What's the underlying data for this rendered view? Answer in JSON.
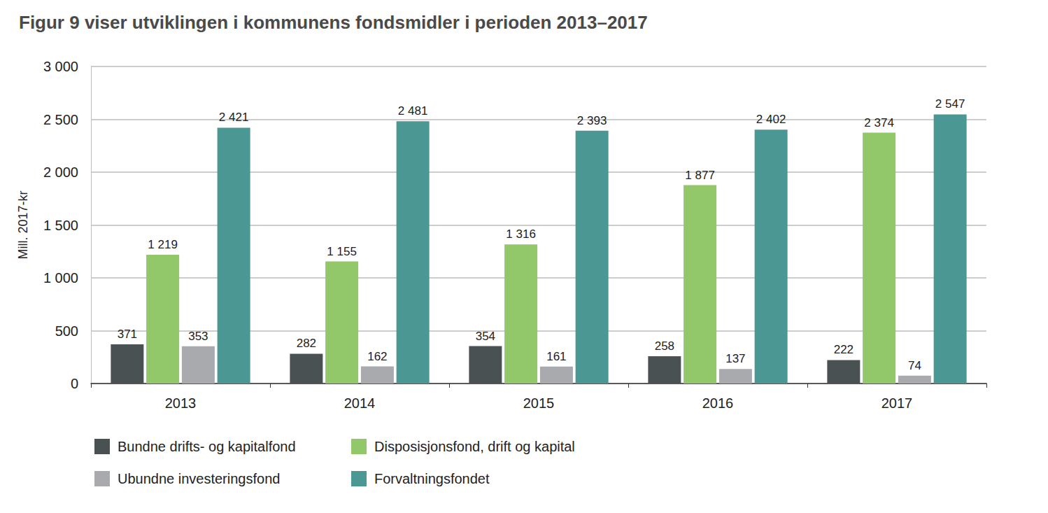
{
  "chart_data": {
    "type": "bar",
    "title": "Figur 9 viser utviklingen i kommunens fondsmidler i perioden 2013–2017",
    "y_label": "Mill. 2017-kr",
    "categories": [
      "2013",
      "2014",
      "2015",
      "2016",
      "2017"
    ],
    "series": [
      {
        "name": "Bundne drifts- og kapitalfond",
        "color": "#4a5153",
        "values": [
          371,
          282,
          354,
          258,
          222
        ],
        "value_labels": [
          "371",
          "282",
          "354",
          "258",
          "222"
        ]
      },
      {
        "name": "Disposisjonsfond, drift og kapital",
        "color": "#93c86a",
        "values": [
          1219,
          1155,
          1316,
          1877,
          2374
        ],
        "value_labels": [
          "1 219",
          "1 155",
          "1 316",
          "1 877",
          "2 374"
        ]
      },
      {
        "name": "Ubundne investeringsfond",
        "color": "#a9aaad",
        "values": [
          353,
          162,
          161,
          137,
          74
        ],
        "value_labels": [
          "353",
          "162",
          "161",
          "137",
          "74"
        ]
      },
      {
        "name": "Forvaltningsfondet",
        "color": "#4b9793",
        "values": [
          2421,
          2481,
          2393,
          2402,
          2547
        ],
        "value_labels": [
          "2 421",
          "2 481",
          "2 393",
          "2 402",
          "2 547"
        ]
      }
    ],
    "ylim": [
      0,
      3000
    ],
    "yticks": [
      0,
      500,
      {
        "value": 1000,
        "label": "1 000"
      },
      {
        "value": 1500,
        "label": "1 500"
      },
      {
        "value": 2000,
        "label": "2 000"
      },
      {
        "value": 2500,
        "label": "2 500"
      },
      {
        "value": 3000,
        "label": "3 000"
      }
    ],
    "grid": true,
    "legend": "bottom",
    "data_labels": true
  }
}
